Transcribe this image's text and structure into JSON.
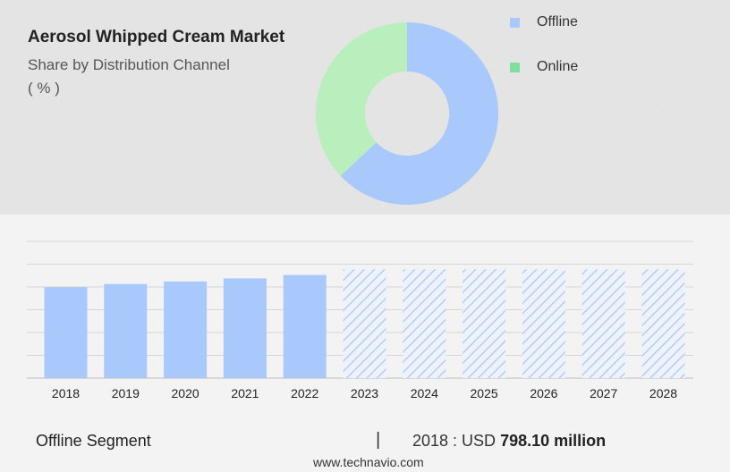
{
  "header": {
    "title": "Aerosol Whipped Cream Market",
    "subtitle": "Share by Distribution Channel",
    "unit": "( % )"
  },
  "donut_legend": [
    {
      "label": "Offline",
      "color": "#a9c8fb"
    },
    {
      "label": "Online",
      "color": "#7ee09b"
    }
  ],
  "chart_data": [
    {
      "type": "pie",
      "variant": "donut",
      "slices": [
        {
          "label": "Offline",
          "value": 63,
          "color": "#a9c8fb"
        },
        {
          "label": "Online",
          "value": 37,
          "color": "#b8efbd"
        }
      ]
    },
    {
      "type": "bar",
      "categories": [
        "2018",
        "2019",
        "2020",
        "2021",
        "2022",
        "2023",
        "2024",
        "2025",
        "2026",
        "2027",
        "2028"
      ],
      "values": [
        798.1,
        826,
        848,
        875,
        905,
        null,
        null,
        null,
        null,
        null,
        null
      ],
      "forecast_categories": [
        "2023",
        "2024",
        "2025",
        "2026",
        "2027",
        "2028"
      ],
      "forecast_pattern": "hatched",
      "bar_color": "#a9c8fb",
      "grid": true,
      "ylim": [
        0,
        1200
      ]
    }
  ],
  "footer": {
    "segment": "Offline Segment",
    "divider": "|",
    "value_prefix": "2018 : USD",
    "value": "798.10 million",
    "source": "www.technavio.com"
  }
}
